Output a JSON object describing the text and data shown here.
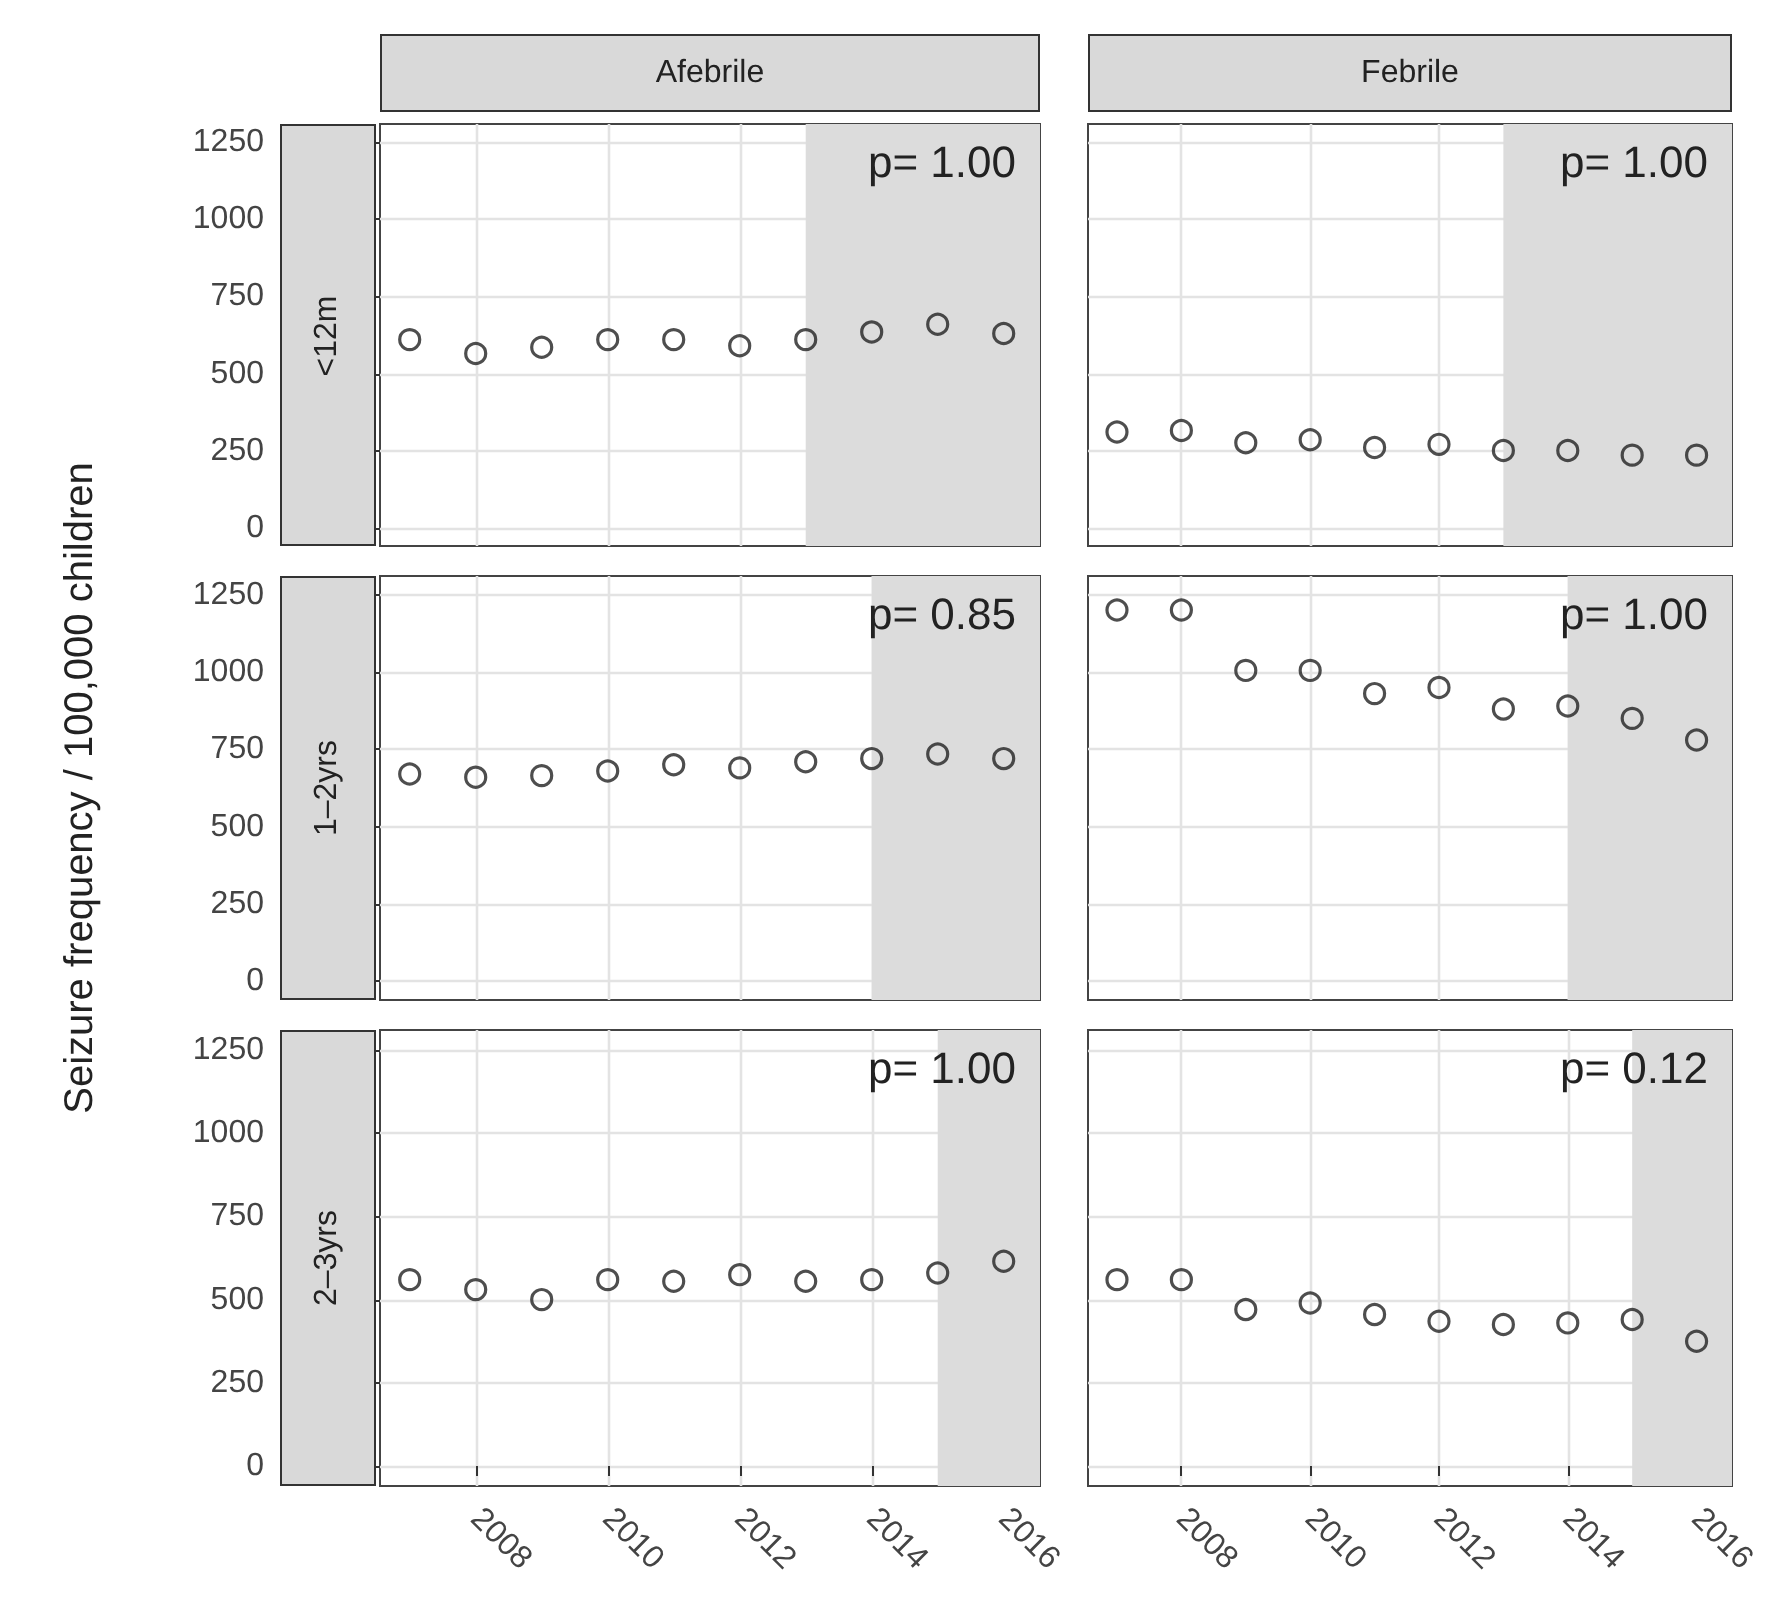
{
  "chart_data": [
    {
      "type": "scatter",
      "title": "Afebrile",
      "subtitle": "<12m",
      "x": [
        2007,
        2008,
        2009,
        2010,
        2011,
        2012,
        2013,
        2014,
        2015,
        2016
      ],
      "series": [
        {
          "color": "#222222",
          "values": [
            610,
            565,
            585,
            610,
            610,
            590,
            610,
            635,
            660,
            630
          ]
        }
      ],
      "xlim": [
        2006.55,
        2016.55
      ],
      "xticks": [
        2008,
        2010,
        2012,
        2014,
        2016
      ],
      "ylim": [
        -60,
        1310
      ],
      "yticks": [
        0,
        250,
        500,
        750,
        1000,
        1250
      ],
      "bands": [
        {
          "axis": "x",
          "from": 2013,
          "to": 2016.55,
          "color": "#dcdcdc"
        }
      ],
      "annotations": [
        "p= 1.00"
      ],
      "marker": "circle",
      "grid": true,
      "tick_labels": "y"
    },
    {
      "type": "scatter",
      "title": "Febrile",
      "x": [
        2007,
        2008,
        2009,
        2010,
        2011,
        2012,
        2013,
        2014,
        2015,
        2016
      ],
      "series": [
        {
          "color": "#222222",
          "values": [
            310,
            315,
            275,
            285,
            260,
            270,
            250,
            250,
            235,
            235
          ]
        }
      ],
      "xlim": [
        2006.55,
        2016.55
      ],
      "xticks": [
        2008,
        2010,
        2012,
        2014,
        2016
      ],
      "ylim": [
        -60,
        1310
      ],
      "yticks": [
        0,
        250,
        500,
        750,
        1000,
        1250
      ],
      "bands": [
        {
          "axis": "x",
          "from": 2013,
          "to": 2016.55,
          "color": "#dcdcdc"
        }
      ],
      "annotations": [
        "p= 1.00"
      ],
      "marker": "circle",
      "grid": true,
      "tick_labels": false
    },
    {
      "type": "scatter",
      "subtitle": "1–2yrs",
      "ylabel": "Seizure frequency / 100,000 children",
      "x": [
        2007,
        2008,
        2009,
        2010,
        2011,
        2012,
        2013,
        2014,
        2015,
        2016
      ],
      "series": [
        {
          "color": "#222222",
          "values": [
            670,
            660,
            665,
            680,
            700,
            690,
            710,
            720,
            735,
            720
          ]
        }
      ],
      "xlim": [
        2006.55,
        2016.55
      ],
      "xticks": [
        2008,
        2010,
        2012,
        2014,
        2016
      ],
      "ylim": [
        -60,
        1310
      ],
      "yticks": [
        0,
        250,
        500,
        750,
        1000,
        1250
      ],
      "bands": [
        {
          "axis": "x",
          "from": 2014,
          "to": 2016.55,
          "color": "#dcdcdc"
        }
      ],
      "annotations": [
        "p= 0.85"
      ],
      "marker": "circle",
      "grid": true,
      "tick_labels": "y"
    },
    {
      "type": "scatter",
      "x": [
        2007,
        2008,
        2009,
        2010,
        2011,
        2012,
        2013,
        2014,
        2015,
        2016
      ],
      "series": [
        {
          "color": "#222222",
          "values": [
            1200,
            1200,
            1005,
            1005,
            930,
            950,
            880,
            890,
            850,
            780
          ]
        }
      ],
      "xlim": [
        2006.55,
        2016.55
      ],
      "xticks": [
        2008,
        2010,
        2012,
        2014,
        2016
      ],
      "ylim": [
        -60,
        1310
      ],
      "yticks": [
        0,
        250,
        500,
        750,
        1000,
        1250
      ],
      "bands": [
        {
          "axis": "x",
          "from": 2014,
          "to": 2016.55,
          "color": "#dcdcdc"
        }
      ],
      "annotations": [
        "p= 1.00"
      ],
      "marker": "circle",
      "grid": true,
      "tick_labels": false
    },
    {
      "type": "scatter",
      "subtitle": "2–3yrs",
      "x": [
        2007,
        2008,
        2009,
        2010,
        2011,
        2012,
        2013,
        2014,
        2015,
        2016
      ],
      "series": [
        {
          "color": "#222222",
          "values": [
            560,
            530,
            500,
            560,
            555,
            575,
            555,
            560,
            580,
            615
          ]
        }
      ],
      "xlim": [
        2006.55,
        2016.55
      ],
      "xticks": [
        2008,
        2010,
        2012,
        2014,
        2016
      ],
      "ylim": [
        -60,
        1310
      ],
      "yticks": [
        0,
        250,
        500,
        750,
        1000,
        1250
      ],
      "bands": [
        {
          "axis": "x",
          "from": 2015,
          "to": 2016.55,
          "color": "#dcdcdc"
        }
      ],
      "annotations": [
        "p= 1.00"
      ],
      "marker": "circle",
      "grid": true
    },
    {
      "type": "scatter",
      "x": [
        2007,
        2008,
        2009,
        2010,
        2011,
        2012,
        2013,
        2014,
        2015,
        2016
      ],
      "series": [
        {
          "color": "#222222",
          "values": [
            560,
            560,
            470,
            490,
            455,
            435,
            425,
            430,
            440,
            375
          ]
        }
      ],
      "xlim": [
        2006.55,
        2016.55
      ],
      "xticks": [
        2008,
        2010,
        2012,
        2014,
        2016
      ],
      "ylim": [
        -60,
        1310
      ],
      "yticks": [
        0,
        250,
        500,
        750,
        1000,
        1250
      ],
      "bands": [
        {
          "axis": "x",
          "from": 2015,
          "to": 2016.55,
          "color": "#dcdcdc"
        }
      ],
      "annotations": [
        "p= 0.12"
      ],
      "marker": "circle",
      "grid": true,
      "tick_labels": "x"
    }
  ]
}
